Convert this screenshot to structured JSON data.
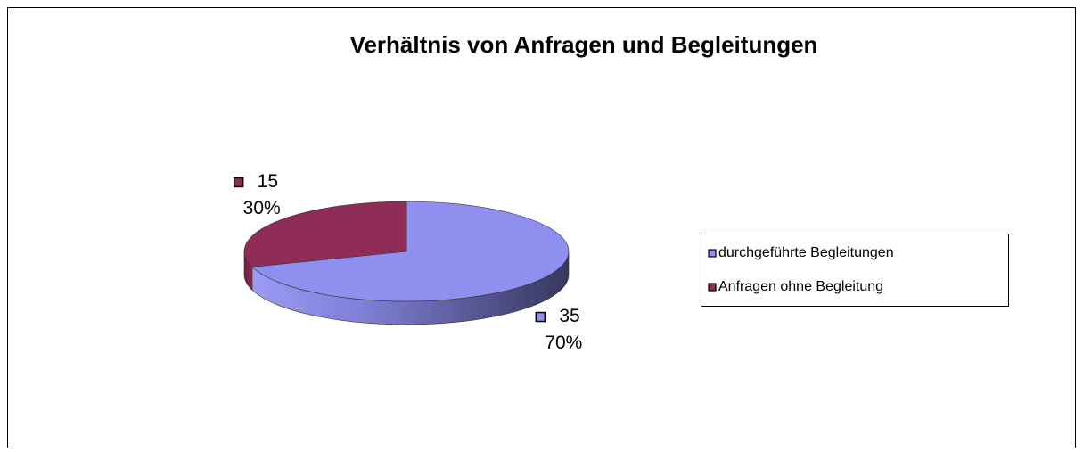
{
  "chart_data": {
    "type": "pie",
    "title": "Verhältnis von Anfragen und Begleitungen",
    "categories": [
      "durchgeführte Begleitungen",
      "Anfragen ohne Begleitung"
    ],
    "values": [
      35,
      15
    ],
    "percentages": [
      70,
      30
    ],
    "percentage_labels": [
      "70%",
      "30%"
    ],
    "colors": [
      "#8f8ff0",
      "#8f2c57"
    ],
    "legend": "right"
  }
}
